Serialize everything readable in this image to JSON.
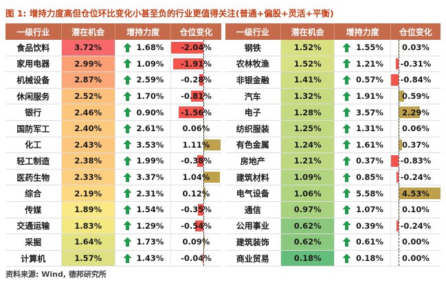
{
  "title": "图 1: 增持力度高但仓位环比变化小甚至负的行业更值得关注(普通+偏股+灵活+平衡)",
  "source": "资料来源: Wind, 德邦研究所",
  "chart_data": {
    "type": "table",
    "title": "增持力度高但仓位环比变化小甚至负的行业更值得关注(普通+偏股+灵活+平衡)",
    "columns": [
      "一级行业",
      "潜在机会",
      "增持力度",
      "仓位变化"
    ],
    "tables": [
      {
        "rows": [
          {
            "industry": "食品饮料",
            "opportunity": "3.72%",
            "increase": "1.68%",
            "change": "-2.04%"
          },
          {
            "industry": "家用电器",
            "opportunity": "2.99%",
            "increase": "1.09%",
            "change": "-1.91%"
          },
          {
            "industry": "机械设备",
            "opportunity": "2.87%",
            "increase": "2.59%",
            "change": "-0.28%"
          },
          {
            "industry": "休闲服务",
            "opportunity": "2.52%",
            "increase": "1.70%",
            "change": "-0.81%"
          },
          {
            "industry": "银行",
            "opportunity": "2.46%",
            "increase": "0.90%",
            "change": "-1.56%"
          },
          {
            "industry": "国防军工",
            "opportunity": "2.40%",
            "increase": "2.61%",
            "change": "0.06%"
          },
          {
            "industry": "化工",
            "opportunity": "2.43%",
            "increase": "3.53%",
            "change": "1.11%"
          },
          {
            "industry": "轻工制造",
            "opportunity": "2.38%",
            "increase": "1.99%",
            "change": "-0.38%"
          },
          {
            "industry": "医药生物",
            "opportunity": "2.33%",
            "increase": "3.37%",
            "change": "1.04%"
          },
          {
            "industry": "综合",
            "opportunity": "2.19%",
            "increase": "2.31%",
            "change": "0.12%"
          },
          {
            "industry": "传媒",
            "opportunity": "1.89%",
            "increase": "1.54%",
            "change": "-0.35%"
          },
          {
            "industry": "交通运输",
            "opportunity": "1.83%",
            "increase": "1.29%",
            "change": "-0.54%"
          },
          {
            "industry": "采掘",
            "opportunity": "1.64%",
            "increase": "1.73%",
            "change": "0.09%"
          },
          {
            "industry": "计算机",
            "opportunity": "1.57%",
            "increase": "1.43%",
            "change": "-0.04%"
          }
        ]
      },
      {
        "rows": [
          {
            "industry": "钢铁",
            "opportunity": "1.52%",
            "increase": "1.55%",
            "change": "0.03%"
          },
          {
            "industry": "农林牧渔",
            "opportunity": "1.52%",
            "increase": "1.21%",
            "change": "-0.31%"
          },
          {
            "industry": "非银金融",
            "opportunity": "1.41%",
            "increase": "0.57%",
            "change": "-0.84%"
          },
          {
            "industry": "汽车",
            "opportunity": "1.32%",
            "increase": "1.91%",
            "change": "0.59%"
          },
          {
            "industry": "电子",
            "opportunity": "1.28%",
            "increase": "3.57%",
            "change": "2.29%"
          },
          {
            "industry": "纺织服装",
            "opportunity": "1.25%",
            "increase": "1.31%",
            "change": "0.06%"
          },
          {
            "industry": "有色金属",
            "opportunity": "1.24%",
            "increase": "1.61%",
            "change": "0.37%"
          },
          {
            "industry": "房地产",
            "opportunity": "1.21%",
            "increase": "0.37%",
            "change": "-0.83%"
          },
          {
            "industry": "建筑材料",
            "opportunity": "1.09%",
            "increase": "0.85%",
            "change": "-0.24%"
          },
          {
            "industry": "电气设备",
            "opportunity": "1.06%",
            "increase": "5.58%",
            "change": "4.53%"
          },
          {
            "industry": "通信",
            "opportunity": "0.97%",
            "increase": "1.07%",
            "change": "0.10%"
          },
          {
            "industry": "公用事业",
            "opportunity": "0.62%",
            "increase": "0.39%",
            "change": "-0.24%"
          },
          {
            "industry": "建筑装饰",
            "opportunity": "0.62%",
            "increase": "0.61%",
            "change": "0.00%"
          },
          {
            "industry": "商业贸易",
            "opportunity": "0.18%",
            "increase": "0.18%",
            "change": "0.00%"
          }
        ]
      }
    ],
    "formatting": {
      "heat_colors": {
        "low": "#63BE7B",
        "mid": "#FFEB84",
        "high": "#F8696B"
      },
      "bar_colors": {
        "negative": "#F4544C",
        "positive": "#BFA14C"
      },
      "arrow_color": "#1BA14A",
      "header_bg": "#C56A4A",
      "title_color": "#C83C10",
      "increase_icon": "green-up-arrow",
      "change_axis_style": "dashed"
    }
  }
}
